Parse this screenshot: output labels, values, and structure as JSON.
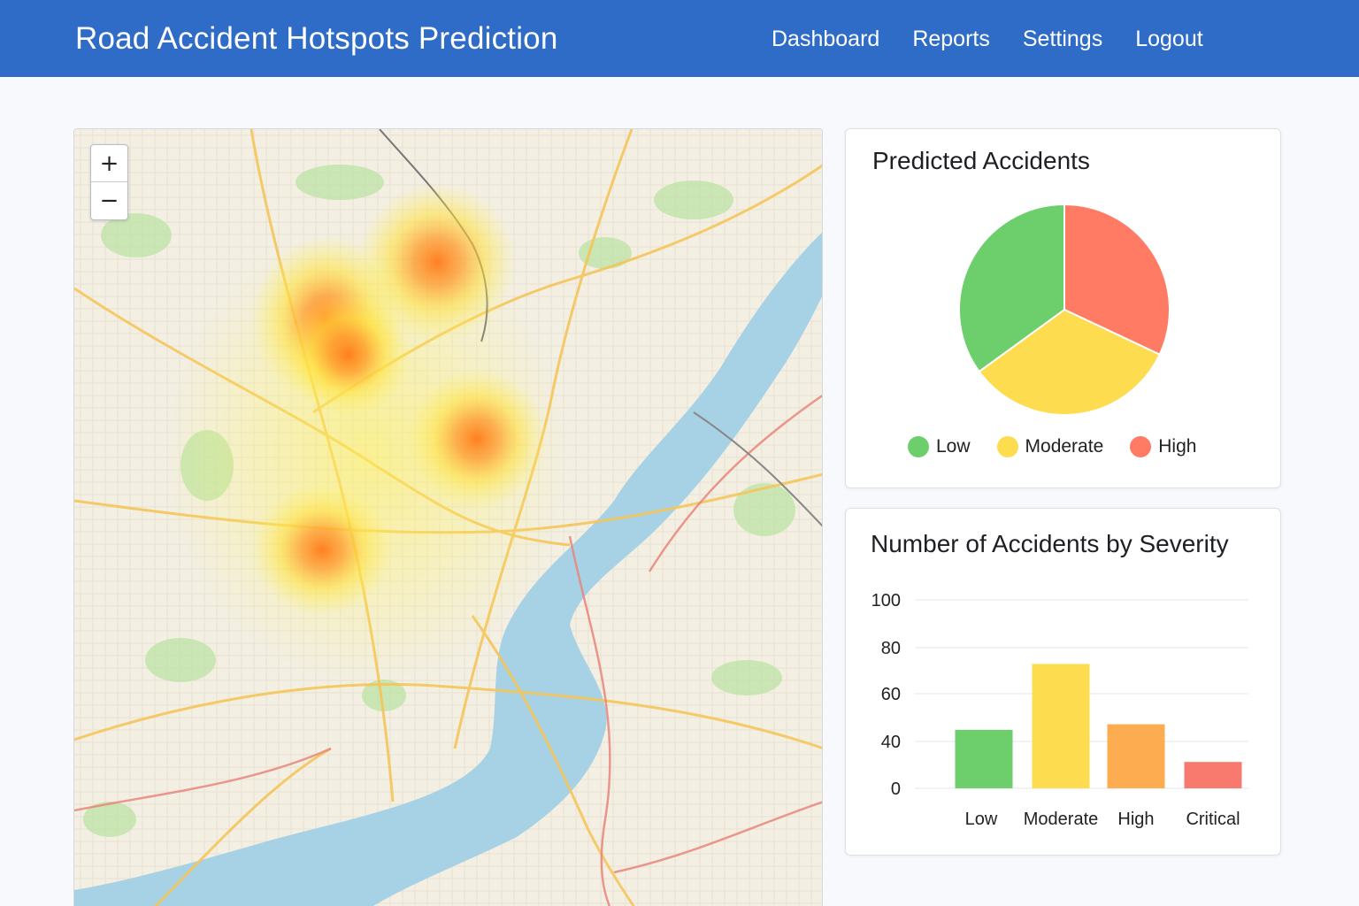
{
  "app": {
    "title": "Road Accident Hotspots Prediction"
  },
  "nav": {
    "items": [
      "Dashboard",
      "Reports",
      "Settings",
      "Logout"
    ]
  },
  "map": {
    "zoom_in_label": "+",
    "zoom_out_label": "−",
    "icons": [
      "plus-icon",
      "minus-icon"
    ]
  },
  "pie_card": {
    "title": "Predicted Accidents",
    "legend": [
      {
        "label": "Low",
        "color": "#6ccf6c"
      },
      {
        "label": "Moderate",
        "color": "#fddc4f"
      },
      {
        "label": "High",
        "color": "#ff7b63"
      }
    ]
  },
  "bar_card": {
    "title": "Number of Accidents by Severity"
  },
  "chart_data": [
    {
      "type": "pie",
      "title": "Predicted Accidents",
      "categories": [
        "Low",
        "Moderate",
        "High"
      ],
      "values": [
        35,
        33,
        32
      ],
      "colors": [
        "#6ccf6c",
        "#fddc4f",
        "#ff7b63"
      ],
      "legend": "bottom"
    },
    {
      "type": "bar",
      "title": "Number of Accidents by Severity",
      "categories": [
        "Low",
        "Moderate",
        "High",
        "Critical"
      ],
      "values": [
        31,
        66,
        34,
        14
      ],
      "colors": [
        "#6ccf6c",
        "#fddc4f",
        "#fdac4f",
        "#f87a6e"
      ],
      "yticks": [
        "0",
        "40",
        "60",
        "80",
        "100"
      ],
      "grid": true,
      "xlabel": "",
      "ylabel": ""
    }
  ]
}
